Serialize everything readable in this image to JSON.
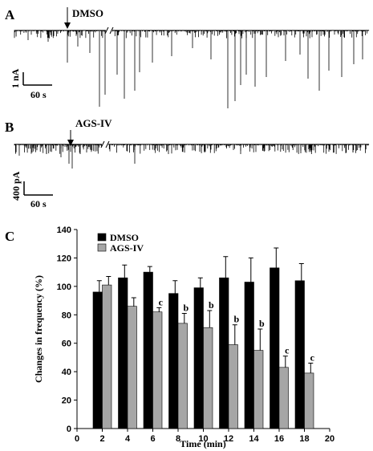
{
  "panels": {
    "a": {
      "label": "A",
      "marker": "DMSO",
      "scale_current": "1 nA",
      "scale_time": "60 s"
    },
    "b": {
      "label": "B",
      "marker": "AGS-IV",
      "scale_current": "400 pA",
      "scale_time": "60 s"
    },
    "c": {
      "label": "C"
    }
  },
  "chart_data": {
    "type": "bar",
    "xlabel": "Time (min)",
    "ylabel": "Changes in frequency (%)",
    "xlim": [
      0,
      20
    ],
    "ylim": [
      0,
      140
    ],
    "xticks": [
      0,
      2,
      4,
      6,
      8,
      10,
      12,
      14,
      16,
      18,
      20
    ],
    "yticks": [
      0,
      20,
      40,
      60,
      80,
      100,
      120,
      140
    ],
    "legend_position": "top-left",
    "x": [
      2,
      4,
      6,
      8,
      10,
      12,
      14,
      16,
      18
    ],
    "series": [
      {
        "name": "DMSO",
        "color": "#000000",
        "values": [
          96,
          106,
          110,
          95,
          99,
          106,
          103,
          113,
          104
        ],
        "errors": [
          8,
          9,
          4,
          9,
          7,
          15,
          17,
          14,
          12
        ]
      },
      {
        "name": "AGS-IV",
        "color": "#a6a6a6",
        "values": [
          101,
          86,
          82,
          74,
          71,
          59,
          55,
          43,
          39
        ],
        "errors": [
          6,
          6,
          3,
          7,
          12,
          14,
          15,
          8,
          7
        ],
        "annotations": [
          "",
          "",
          "c",
          "b",
          "b",
          "b",
          "b",
          "c",
          "c"
        ]
      }
    ]
  }
}
